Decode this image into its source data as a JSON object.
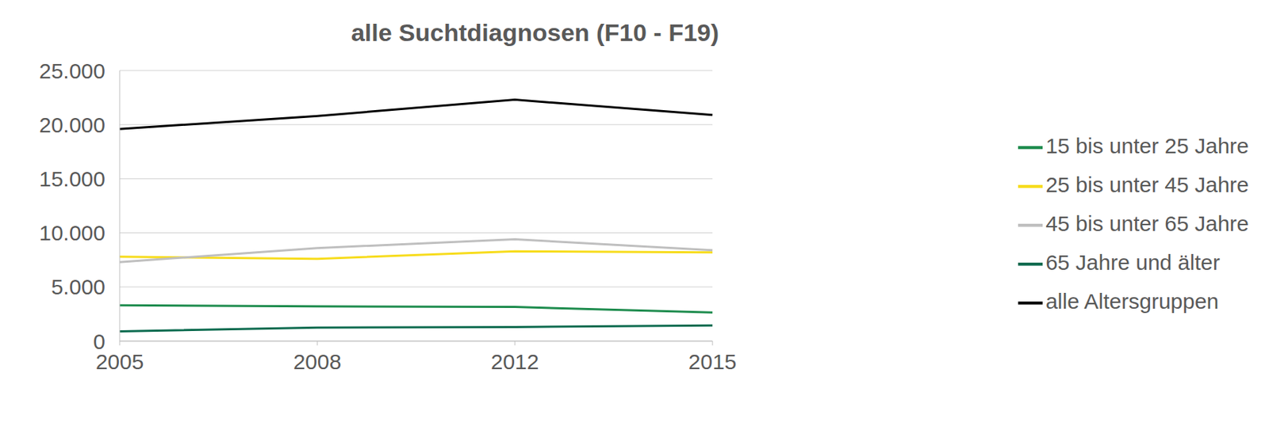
{
  "chart_data": {
    "type": "line",
    "title": "alle Suchtdiagnosen (F10 - F19)",
    "categories": [
      "2005",
      "2008",
      "2012",
      "2015"
    ],
    "series": [
      {
        "name": "alle Altersgruppen",
        "color": "#000000",
        "values": [
          19600,
          20800,
          22300,
          20900
        ]
      },
      {
        "name": "15 bis unter 25 Jahre",
        "color": "#1e8c4e",
        "values": [
          3300,
          3200,
          3150,
          2650
        ]
      },
      {
        "name": "25 bis unter 45 Jahre",
        "color": "#f7dc1c",
        "values": [
          7800,
          7600,
          8300,
          8200
        ]
      },
      {
        "name": "45 bis unter 65 Jahre",
        "color": "#bfbfbf",
        "values": [
          7300,
          8600,
          9400,
          8400
        ]
      },
      {
        "name": "65 Jahre und älter",
        "color": "#0b6b4f",
        "values": [
          900,
          1250,
          1300,
          1450
        ]
      }
    ],
    "ylim": [
      0,
      25000
    ],
    "yticks": [
      0,
      {
        "value": 5000,
        "label": "5.000"
      },
      {
        "value": 10000,
        "label": "10.000"
      },
      {
        "value": 15000,
        "label": "15.000"
      },
      {
        "value": 20000,
        "label": "20.000"
      },
      {
        "value": 25000,
        "label": "25.000"
      }
    ],
    "grid": true,
    "legend": "right"
  }
}
